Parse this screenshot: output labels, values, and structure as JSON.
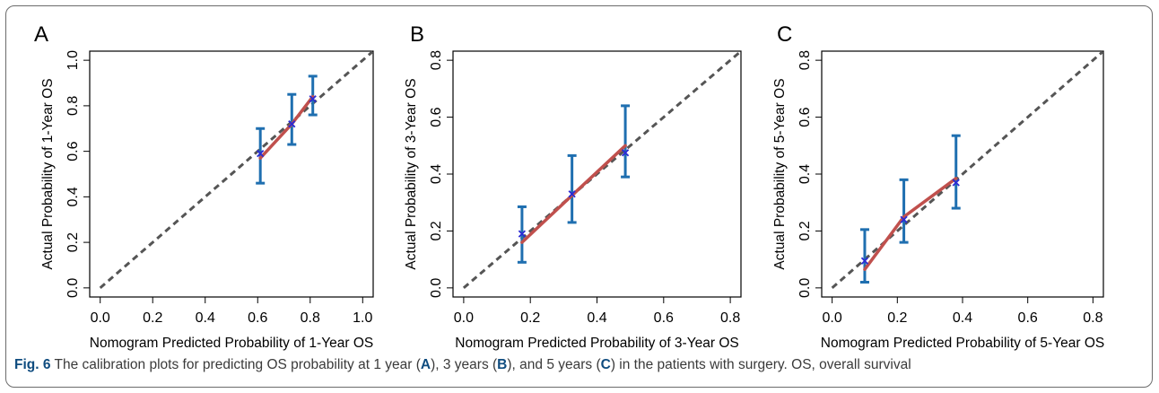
{
  "caption": {
    "fig_label": "Fig. 6",
    "parts": [
      {
        "text": " The calibration plots for predicting OS probability at 1 year (",
        "bold": false
      },
      {
        "text": "A",
        "bold": true
      },
      {
        "text": "), 3 years (",
        "bold": false
      },
      {
        "text": "B",
        "bold": true
      },
      {
        "text": "), and 5 years (",
        "bold": false
      },
      {
        "text": "C",
        "bold": true
      },
      {
        "text": ") in the patients with surgery. OS, overall survival",
        "bold": false
      }
    ]
  },
  "colors": {
    "ideal_line": "#555555",
    "fitted_line": "#c0504d",
    "error_bars": "#1f6fb0",
    "observed_marker": "#2b2bd4",
    "axis": "#000000",
    "frame": "#6b6b6b",
    "caption_label": "#0f4c7f"
  },
  "chart_data": [
    {
      "type": "line",
      "panel_label": "A",
      "xlabel": "Nomogram Predicted Probability of 1-Year OS",
      "ylabel": "Actual Probability of 1-Year OS",
      "xlim": [
        0.0,
        1.0
      ],
      "ylim": [
        0.0,
        1.0
      ],
      "xticks": [
        0.0,
        0.2,
        0.4,
        0.6,
        0.8,
        1.0
      ],
      "yticks": [
        0.0,
        0.2,
        0.4,
        0.6,
        0.8,
        1.0
      ],
      "tick_labels_x": [
        "0.0",
        "0.2",
        "0.4",
        "0.6",
        "0.8",
        "1.0"
      ],
      "tick_labels_y": [
        "0.0",
        "0.2",
        "0.4",
        "0.6",
        "0.8",
        "1.0"
      ],
      "grid": false,
      "ideal_line": {
        "from": [
          0.0,
          0.0
        ],
        "to": [
          1.0,
          1.0
        ],
        "style": "dashed"
      },
      "x": [
        0.61,
        0.73,
        0.81
      ],
      "predicted_curve": [
        0.57,
        0.72,
        0.84
      ],
      "observed": [
        0.59,
        0.72,
        0.83
      ],
      "ci_lower": [
        0.46,
        0.63,
        0.76
      ],
      "ci_upper": [
        0.7,
        0.85,
        0.93
      ]
    },
    {
      "type": "line",
      "panel_label": "B",
      "xlabel": "Nomogram Predicted Probability of 3-Year OS",
      "ylabel": "Actual Probability of 3-Year OS",
      "xlim": [
        0.0,
        0.8
      ],
      "ylim": [
        0.0,
        0.8
      ],
      "xticks": [
        0.0,
        0.2,
        0.4,
        0.6,
        0.8
      ],
      "yticks": [
        0.0,
        0.2,
        0.4,
        0.6,
        0.8
      ],
      "tick_labels_x": [
        "0.0",
        "0.2",
        "0.4",
        "0.6",
        "0.8"
      ],
      "tick_labels_y": [
        "0.0",
        "0.2",
        "0.4",
        "0.6",
        "0.8"
      ],
      "grid": false,
      "ideal_line": {
        "from": [
          0.0,
          0.0
        ],
        "to": [
          0.8,
          0.8
        ],
        "style": "dashed"
      },
      "x": [
        0.175,
        0.325,
        0.485
      ],
      "predicted_curve": [
        0.16,
        0.325,
        0.5
      ],
      "observed": [
        0.19,
        0.33,
        0.475
      ],
      "ci_lower": [
        0.09,
        0.23,
        0.39
      ],
      "ci_upper": [
        0.285,
        0.465,
        0.64
      ]
    },
    {
      "type": "line",
      "panel_label": "C",
      "xlabel": "Nomogram Predicted Probability of 5-Year OS",
      "ylabel": "Actual Probability of 5-Year OS",
      "xlim": [
        0.0,
        0.8
      ],
      "ylim": [
        0.0,
        0.8
      ],
      "xticks": [
        0.0,
        0.2,
        0.4,
        0.6,
        0.8
      ],
      "yticks": [
        0.0,
        0.2,
        0.4,
        0.6,
        0.8
      ],
      "tick_labels_x": [
        "0.0",
        "0.2",
        "0.4",
        "0.6",
        "0.8"
      ],
      "tick_labels_y": [
        "0.0",
        "0.2",
        "0.4",
        "0.6",
        "0.8"
      ],
      "grid": false,
      "ideal_line": {
        "from": [
          0.0,
          0.0
        ],
        "to": [
          0.8,
          0.8
        ],
        "style": "dashed"
      },
      "x": [
        0.1,
        0.22,
        0.38
      ],
      "predicted_curve": [
        0.065,
        0.25,
        0.385
      ],
      "observed": [
        0.095,
        0.24,
        0.37
      ],
      "ci_lower": [
        0.02,
        0.16,
        0.28
      ],
      "ci_upper": [
        0.205,
        0.38,
        0.535
      ]
    }
  ]
}
